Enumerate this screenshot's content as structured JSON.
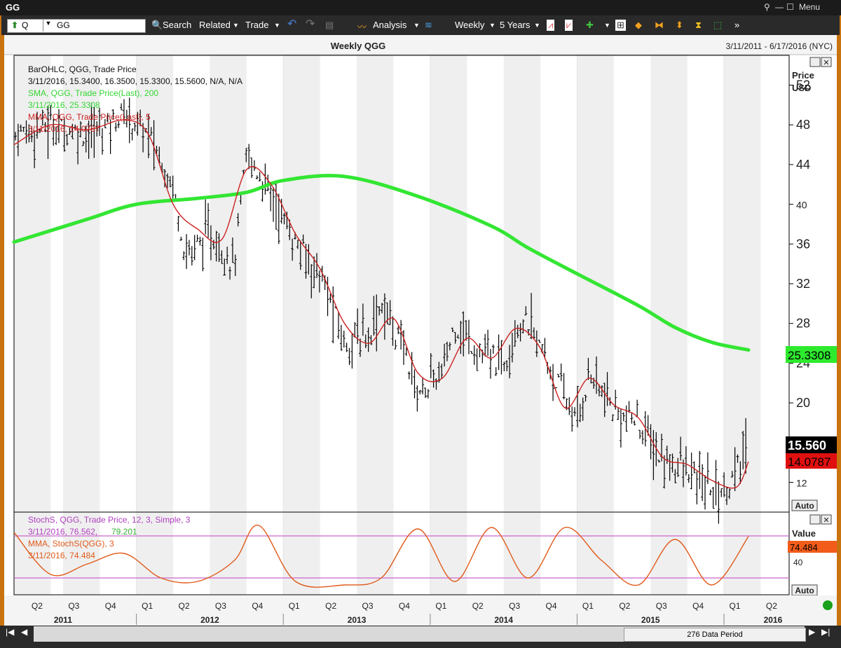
{
  "window": {
    "title": "GG",
    "menu_label": "Menu"
  },
  "toolbar": {
    "symbol_prefix": "Q",
    "symbol_value": "GG",
    "search": "Search",
    "related": "Related",
    "trade": "Trade",
    "analysis": "Analysis",
    "periodicity": "Weekly",
    "range": "5 Years"
  },
  "chart": {
    "title": "Weekly QGG",
    "date_range": "3/11/2011 - 6/17/2016 (NYC)",
    "price_axis_title_1": "Price",
    "price_axis_title_2": "USD",
    "value_axis_title": "Value",
    "auto_label": "Auto",
    "legend_bar": "BarOHLC, QGG, Trade Price",
    "legend_bar_values": "3/11/2016, 15.3400, 16.3500, 15.3300, 15.5600, N/A, N/A",
    "legend_sma": "SMA, QGG, Trade Price(Last),  200",
    "legend_sma_values": "3/11/2016, 25.3308",
    "legend_mma": "MMA, QGG, Trade Price(Last),  5",
    "legend_mma_values": "3/11/2016, 14.0787",
    "legend_stoch": "StochS, QGG, Trade Price,  12, 3, Simple, 3",
    "legend_stoch_values_a": "3/11/2016, 76.562,",
    "legend_stoch_values_b": "79.201",
    "legend_stoch_mma": "MMA, StochS(QGG),  3",
    "legend_stoch_mma_values": "3/11/2016, 74.484",
    "last_price_tag": "15.560",
    "sma_tag": "25.3308",
    "mma_tag": "14.0787",
    "stoch_tag": "74.484",
    "stoch_tick": "40",
    "data_period": "276 Data Period",
    "colors": {
      "bars": "#000000",
      "sma": "#33e633",
      "mma": "#cc2222",
      "stoch": "#e05a1a",
      "stoch_band": "#cc66cc"
    }
  },
  "chart_data": {
    "type": "line",
    "title": "Weekly QGG",
    "ylabel": "Price USD",
    "ylim": [
      9,
      55
    ],
    "yticks": [
      12,
      20,
      24,
      28,
      32,
      36,
      40,
      44,
      48,
      52
    ],
    "x_quarters": [
      "Q2",
      "Q3",
      "Q4",
      "Q1",
      "Q2",
      "Q3",
      "Q4",
      "Q1",
      "Q2",
      "Q3",
      "Q4",
      "Q1",
      "Q2",
      "Q3",
      "Q4",
      "Q1",
      "Q2",
      "Q3",
      "Q4",
      "Q1",
      "Q2"
    ],
    "x_years": [
      "2011",
      "2012",
      "2013",
      "2014",
      "2015",
      "2016"
    ],
    "series": [
      {
        "name": "BarOHLC, QGG, Trade Price",
        "kind": "ohlc_close_path",
        "x": [
          "2011-03",
          "2011-06",
          "2011-09",
          "2011-12",
          "2012-02",
          "2012-04",
          "2012-05",
          "2012-07",
          "2012-09",
          "2012-10",
          "2012-12",
          "2013-02",
          "2013-04",
          "2013-06",
          "2013-08",
          "2013-09",
          "2013-11",
          "2013-12",
          "2014-02",
          "2014-03",
          "2014-05",
          "2014-07",
          "2014-08",
          "2014-09",
          "2014-11",
          "2015-01",
          "2015-02",
          "2015-04",
          "2015-06",
          "2015-08",
          "2015-09",
          "2015-11",
          "2016-01",
          "2016-02",
          "2016-03"
        ],
        "values": [
          47,
          48,
          47,
          49,
          47,
          42,
          35,
          37,
          34,
          45,
          41,
          36,
          33,
          26,
          27,
          30,
          25,
          21,
          23,
          28,
          25,
          24,
          28,
          28,
          23,
          18,
          23,
          19,
          18,
          14,
          14,
          12,
          11,
          13,
          15.56
        ]
      },
      {
        "name": "SMA, QGG, Trade Price(Last), 200",
        "x": [
          "2011-03",
          "2011-09",
          "2012-01",
          "2012-06",
          "2012-10",
          "2013-01",
          "2013-06",
          "2013-12",
          "2014-06",
          "2014-09",
          "2015-01",
          "2015-06",
          "2015-09",
          "2015-12",
          "2016-03"
        ],
        "values": [
          36.2,
          38.5,
          40.0,
          40.6,
          41.2,
          42.4,
          42.8,
          40.8,
          37.8,
          35.6,
          33.0,
          29.8,
          27.6,
          26.1,
          25.33
        ]
      },
      {
        "name": "MMA, QGG, Trade Price(Last), 5",
        "x": [
          "2011-03",
          "2011-06",
          "2011-09",
          "2011-12",
          "2012-02",
          "2012-04",
          "2012-06",
          "2012-08",
          "2012-10",
          "2012-12",
          "2013-02",
          "2013-04",
          "2013-06",
          "2013-08",
          "2013-10",
          "2013-12",
          "2014-02",
          "2014-04",
          "2014-06",
          "2014-08",
          "2014-10",
          "2014-12",
          "2015-02",
          "2015-04",
          "2015-06",
          "2015-08",
          "2015-10",
          "2015-12",
          "2016-02",
          "2016-03"
        ],
        "values": [
          46,
          48,
          47.5,
          48.5,
          47,
          40,
          37.5,
          36.5,
          43.5,
          42,
          37,
          33.5,
          28,
          26,
          28.5,
          23,
          22.5,
          26.5,
          24.5,
          27.5,
          25.5,
          19.5,
          22.5,
          19.8,
          18.5,
          14.5,
          13.8,
          12.2,
          11.5,
          14.08
        ]
      },
      {
        "name": "StochS, QGG, Trade Price, 12, 3, Simple, 3",
        "x": [
          "2011-03",
          "2011-06",
          "2011-09",
          "2011-12",
          "2012-03",
          "2012-06",
          "2012-09",
          "2012-11",
          "2013-02",
          "2013-06",
          "2013-09",
          "2013-12",
          "2014-03",
          "2014-06",
          "2014-09",
          "2014-12",
          "2015-03",
          "2015-06",
          "2015-09",
          "2015-12",
          "2016-03"
        ],
        "values": [
          85,
          25,
          40,
          55,
          20,
          15,
          45,
          95,
          15,
          10,
          20,
          90,
          15,
          92,
          20,
          92,
          45,
          10,
          75,
          10,
          79.2
        ]
      }
    ]
  }
}
